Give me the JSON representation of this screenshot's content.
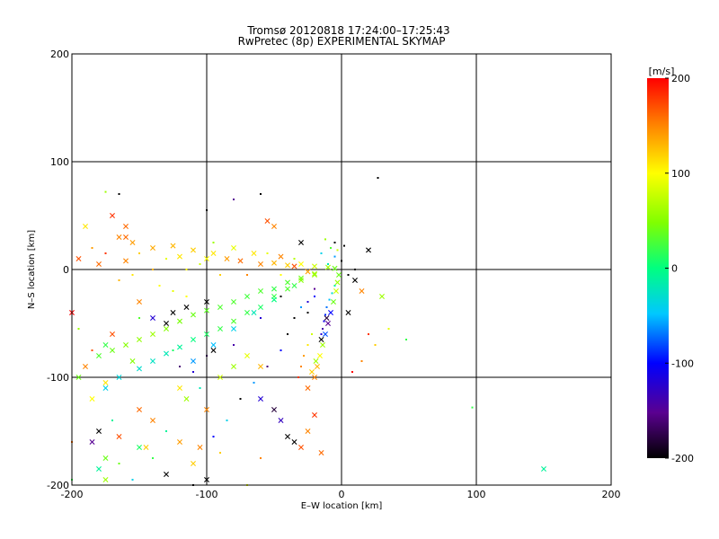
{
  "chart_data": {
    "type": "scatter",
    "title": "Tromsø 20120818  17:24:00–17:25:43",
    "subtitle": "RwPretec (8p) EXPERIMENTAL SKYMAP",
    "xlabel": "E–W location [km]",
    "ylabel": "N–S location [km]",
    "xlim": [
      -200,
      200
    ],
    "ylim": [
      -200,
      200
    ],
    "xticks": [
      "-200",
      "-100",
      "0",
      "100",
      "200"
    ],
    "yticks": [
      "-200",
      "-100",
      "0",
      "100",
      "200"
    ],
    "grid": true,
    "colorbar": {
      "label": "[m/s]",
      "range": [
        -200,
        200
      ],
      "ticks": [
        "200",
        "100",
        "0",
        "-100",
        "-200"
      ]
    },
    "points": [
      [
        -165,
        30,
        150,
        "x"
      ],
      [
        -155,
        25,
        140,
        "x"
      ],
      [
        -140,
        20,
        135,
        "x"
      ],
      [
        -125,
        22,
        130,
        "x"
      ],
      [
        -110,
        18,
        120,
        "x"
      ],
      [
        -95,
        15,
        110,
        "x"
      ],
      [
        -85,
        10,
        140,
        "x"
      ],
      [
        -75,
        8,
        160,
        "x"
      ],
      [
        -60,
        5,
        150,
        "x"
      ],
      [
        -50,
        6,
        130,
        "x"
      ],
      [
        -40,
        4,
        120,
        "x"
      ],
      [
        -30,
        5,
        100,
        "x"
      ],
      [
        -20,
        3,
        80,
        "x"
      ],
      [
        -10,
        2,
        60,
        "x"
      ],
      [
        -5,
        1,
        40,
        "x"
      ],
      [
        -195,
        10,
        170,
        "x"
      ],
      [
        -180,
        5,
        160,
        "x"
      ],
      [
        -160,
        8,
        150,
        "x"
      ],
      [
        -120,
        12,
        110,
        "x"
      ],
      [
        -100,
        10,
        100,
        "x"
      ],
      [
        -80,
        20,
        90,
        "x"
      ],
      [
        -65,
        15,
        110,
        "x"
      ],
      [
        -45,
        12,
        150,
        "x"
      ],
      [
        -35,
        3,
        170,
        "x"
      ],
      [
        -25,
        -2,
        140,
        "x"
      ],
      [
        -180,
        -80,
        30,
        "x"
      ],
      [
        -170,
        -75,
        40,
        "x"
      ],
      [
        -160,
        -70,
        50,
        "x"
      ],
      [
        -150,
        -65,
        55,
        "x"
      ],
      [
        -140,
        -60,
        60,
        "x"
      ],
      [
        -130,
        -55,
        50,
        "x"
      ],
      [
        -120,
        -48,
        45,
        "x"
      ],
      [
        -110,
        -42,
        40,
        "x"
      ],
      [
        -100,
        -38,
        35,
        "x"
      ],
      [
        -90,
        -35,
        30,
        "x"
      ],
      [
        -80,
        -30,
        30,
        "x"
      ],
      [
        -70,
        -25,
        25,
        "x"
      ],
      [
        -60,
        -20,
        30,
        "x"
      ],
      [
        -50,
        -18,
        20,
        "x"
      ],
      [
        -40,
        -12,
        30,
        "x"
      ],
      [
        -30,
        -8,
        40,
        "x"
      ],
      [
        -20,
        -4,
        60,
        "x"
      ],
      [
        -175,
        -110,
        -40,
        "x"
      ],
      [
        -165,
        -100,
        -35,
        "x"
      ],
      [
        -150,
        -92,
        -30,
        "x"
      ],
      [
        -140,
        -85,
        -25,
        "x"
      ],
      [
        -130,
        -78,
        -20,
        "x"
      ],
      [
        -120,
        -72,
        -10,
        "x"
      ],
      [
        -110,
        -65,
        0,
        "x"
      ],
      [
        -100,
        -60,
        10,
        "x"
      ],
      [
        -90,
        -55,
        20,
        "x"
      ],
      [
        -80,
        -48,
        30,
        "x"
      ],
      [
        -70,
        -40,
        20,
        "x"
      ],
      [
        -60,
        -35,
        10,
        "x"
      ],
      [
        -50,
        -25,
        20,
        "x"
      ],
      [
        -40,
        -18,
        30,
        "x"
      ],
      [
        -30,
        -10,
        50,
        "x"
      ],
      [
        -20,
        -5,
        60,
        "x"
      ],
      [
        -110,
        -85,
        -60,
        "x"
      ],
      [
        -95,
        -70,
        -50,
        "x"
      ],
      [
        -80,
        -55,
        -40,
        "x"
      ],
      [
        -65,
        -40,
        -20,
        "x"
      ],
      [
        -50,
        -28,
        0,
        "x"
      ],
      [
        -35,
        -15,
        20,
        "x"
      ],
      [
        -20,
        -100,
        150,
        "x"
      ],
      [
        -18,
        -90,
        130,
        "x"
      ],
      [
        -16,
        -80,
        100,
        "x"
      ],
      [
        -14,
        -70,
        60,
        "x"
      ],
      [
        -12,
        -60,
        -80,
        "x"
      ],
      [
        -10,
        -50,
        -150,
        "x"
      ],
      [
        -8,
        -40,
        -100,
        "x"
      ],
      [
        -6,
        -30,
        40,
        "x"
      ],
      [
        -4,
        -20,
        80,
        "x"
      ],
      [
        -3,
        -12,
        60,
        "x"
      ],
      [
        -2,
        -5,
        40,
        "x"
      ],
      [
        -25,
        -110,
        160,
        "x"
      ],
      [
        -22,
        -95,
        120,
        "x"
      ],
      [
        -19,
        -85,
        60,
        "x"
      ],
      [
        -15,
        -65,
        -200,
        "x"
      ],
      [
        -11,
        -45,
        -180,
        "x"
      ],
      [
        -185,
        -160,
        -150,
        "x"
      ],
      [
        -180,
        -150,
        -200,
        "x"
      ],
      [
        -175,
        -175,
        40,
        "x"
      ],
      [
        -165,
        -155,
        170,
        "x"
      ],
      [
        -150,
        -130,
        160,
        "x"
      ],
      [
        -140,
        -140,
        150,
        "x"
      ],
      [
        -120,
        -160,
        140,
        "x"
      ],
      [
        -110,
        -180,
        120,
        "x"
      ],
      [
        -100,
        -195,
        -200,
        "x"
      ],
      [
        -40,
        -155,
        -200,
        "x"
      ],
      [
        -35,
        -160,
        -200,
        "x"
      ],
      [
        -30,
        -165,
        170,
        "x"
      ],
      [
        -25,
        -150,
        150,
        "x"
      ],
      [
        -20,
        -135,
        180,
        "x"
      ],
      [
        -15,
        -170,
        160,
        "x"
      ],
      [
        -140,
        -45,
        -120,
        "x"
      ],
      [
        -130,
        -50,
        -200,
        "x"
      ],
      [
        -125,
        -40,
        -200,
        "x"
      ],
      [
        -115,
        -35,
        -200,
        "x"
      ],
      [
        -100,
        -30,
        -200,
        "x"
      ],
      [
        -95,
        -75,
        -200,
        "x"
      ],
      [
        -60,
        -120,
        -120,
        "x"
      ],
      [
        -200,
        -40,
        200,
        "x"
      ],
      [
        -190,
        -90,
        150,
        "x"
      ],
      [
        -185,
        -120,
        100,
        "x"
      ],
      [
        -175,
        -105,
        110,
        "x"
      ],
      [
        -170,
        -60,
        170,
        "x"
      ],
      [
        -195,
        -100,
        40,
        "x"
      ],
      [
        -160,
        40,
        160,
        "x"
      ],
      [
        -150,
        -30,
        150,
        "x"
      ],
      [
        -100,
        -130,
        150,
        "x"
      ],
      [
        -120,
        -110,
        110,
        "x"
      ],
      [
        -70,
        -80,
        90,
        "x"
      ],
      [
        -60,
        -90,
        130,
        "x"
      ],
      [
        -50,
        -130,
        -180,
        "x"
      ],
      [
        -45,
        -140,
        -130,
        "x"
      ],
      [
        -150,
        -165,
        10,
        "x"
      ],
      [
        -180,
        -185,
        -10,
        "x"
      ],
      [
        150,
        -185,
        -10,
        "x"
      ],
      [
        20,
        18,
        -200,
        "x"
      ],
      [
        10,
        -10,
        -200,
        "x"
      ],
      [
        15,
        -20,
        150,
        "x"
      ],
      [
        30,
        -25,
        60,
        "x"
      ],
      [
        5,
        -40,
        -200,
        "x"
      ],
      [
        -30,
        25,
        -200,
        "x"
      ],
      [
        -50,
        40,
        150,
        "x"
      ],
      [
        -55,
        45,
        170,
        "x"
      ],
      [
        -170,
        50,
        180,
        "x"
      ],
      [
        -190,
        40,
        110,
        "x"
      ],
      [
        -160,
        30,
        160,
        "x"
      ],
      [
        -175,
        -195,
        60,
        "x"
      ],
      [
        -175,
        -70,
        20,
        "x"
      ],
      [
        -155,
        -85,
        50,
        "x"
      ],
      [
        -145,
        -165,
        120,
        "x"
      ],
      [
        -80,
        -90,
        60,
        "x"
      ],
      [
        -90,
        -100,
        80,
        "x"
      ],
      [
        -105,
        -165,
        150,
        "x"
      ],
      [
        -115,
        -120,
        60,
        "x"
      ],
      [
        -130,
        -190,
        -200,
        "x"
      ],
      [
        -150,
        15,
        120,
        "."
      ],
      [
        -140,
        0,
        130,
        "."
      ],
      [
        -130,
        10,
        90,
        "."
      ],
      [
        -115,
        0,
        100,
        "."
      ],
      [
        -105,
        5,
        80,
        "."
      ],
      [
        -95,
        25,
        60,
        "."
      ],
      [
        -90,
        -5,
        120,
        "."
      ],
      [
        -70,
        -5,
        150,
        "."
      ],
      [
        -55,
        15,
        90,
        "."
      ],
      [
        -45,
        -5,
        100,
        "."
      ],
      [
        -35,
        10,
        70,
        "."
      ],
      [
        -15,
        15,
        -40,
        "."
      ],
      [
        -10,
        5,
        -20,
        "."
      ],
      [
        -5,
        12,
        -60,
        "."
      ],
      [
        0,
        8,
        -200,
        "."
      ],
      [
        5,
        -5,
        -200,
        "."
      ],
      [
        10,
        0,
        -200,
        "."
      ],
      [
        -185,
        20,
        140,
        "."
      ],
      [
        -175,
        15,
        180,
        "."
      ],
      [
        -165,
        -10,
        130,
        "."
      ],
      [
        -155,
        -5,
        110,
        "."
      ],
      [
        -135,
        -15,
        100,
        "."
      ],
      [
        -125,
        -20,
        90,
        "."
      ],
      [
        -115,
        -25,
        100,
        "."
      ],
      [
        -15,
        -60,
        -120,
        "."
      ],
      [
        -14,
        -55,
        -140,
        "."
      ],
      [
        -13,
        -48,
        -110,
        "."
      ],
      [
        -12,
        -42,
        -90,
        "."
      ],
      [
        -11,
        -35,
        -70,
        "."
      ],
      [
        -9,
        -28,
        -50,
        "."
      ],
      [
        -7,
        -22,
        -30,
        "."
      ],
      [
        -5,
        -15,
        -10,
        "."
      ],
      [
        -25,
        -70,
        110,
        "."
      ],
      [
        -28,
        -80,
        140,
        "."
      ],
      [
        -30,
        -90,
        150,
        "."
      ],
      [
        -32,
        -100,
        180,
        "."
      ],
      [
        -22,
        -60,
        80,
        "."
      ],
      [
        -165,
        70,
        -200,
        "."
      ],
      [
        -175,
        72,
        60,
        "."
      ],
      [
        -100,
        55,
        -200,
        "."
      ],
      [
        -80,
        65,
        -150,
        "."
      ],
      [
        -60,
        70,
        -200,
        "."
      ],
      [
        27,
        85,
        -200,
        "."
      ],
      [
        -40,
        -60,
        -200,
        "."
      ],
      [
        -45,
        -75,
        -100,
        "."
      ],
      [
        -55,
        -90,
        -160,
        "."
      ],
      [
        -65,
        -105,
        -60,
        "."
      ],
      [
        -75,
        -120,
        -200,
        "."
      ],
      [
        -85,
        -140,
        -40,
        "."
      ],
      [
        -95,
        -155,
        -100,
        "."
      ],
      [
        -150,
        -45,
        30,
        "."
      ],
      [
        -125,
        -75,
        10,
        "."
      ],
      [
        -105,
        -110,
        -20,
        "."
      ],
      [
        -90,
        -170,
        120,
        "."
      ],
      [
        -70,
        -200,
        90,
        "."
      ],
      [
        -60,
        -175,
        150,
        "."
      ],
      [
        -170,
        -140,
        -10,
        "."
      ],
      [
        -165,
        -180,
        40,
        "."
      ],
      [
        -155,
        -195,
        -40,
        "."
      ],
      [
        -140,
        -175,
        20,
        "."
      ],
      [
        -130,
        -150,
        -10,
        "."
      ],
      [
        20,
        -60,
        180,
        "."
      ],
      [
        25,
        -70,
        120,
        "."
      ],
      [
        15,
        -85,
        150,
        "."
      ],
      [
        8,
        -95,
        200,
        "."
      ],
      [
        35,
        -55,
        90,
        "."
      ],
      [
        48,
        -65,
        20,
        "."
      ],
      [
        97,
        -128,
        20,
        "."
      ],
      [
        -45,
        -25,
        -200,
        "."
      ],
      [
        -25,
        -40,
        -200,
        "."
      ],
      [
        -20,
        -18,
        -150,
        "."
      ],
      [
        -60,
        -45,
        -120,
        "."
      ],
      [
        -110,
        -200,
        -200,
        "."
      ],
      [
        -200,
        -195,
        20,
        "."
      ],
      [
        -200,
        -160,
        160,
        "."
      ],
      [
        -195,
        -55,
        60,
        "."
      ],
      [
        -185,
        -75,
        170,
        "."
      ],
      [
        -5,
        25,
        -200,
        "."
      ],
      [
        -8,
        20,
        30,
        "."
      ],
      [
        -3,
        18,
        80,
        "."
      ],
      [
        2,
        22,
        -200,
        "."
      ],
      [
        -12,
        28,
        60,
        "."
      ],
      [
        -20,
        -25,
        -100,
        "."
      ],
      [
        -25,
        -30,
        -120,
        "."
      ],
      [
        -30,
        -35,
        -60,
        "."
      ],
      [
        -35,
        -45,
        -200,
        "."
      ],
      [
        -120,
        -90,
        -160,
        "."
      ],
      [
        -100,
        -80,
        -180,
        "."
      ],
      [
        -80,
        -70,
        -140,
        "."
      ],
      [
        -110,
        -95,
        -120,
        "."
      ]
    ]
  }
}
